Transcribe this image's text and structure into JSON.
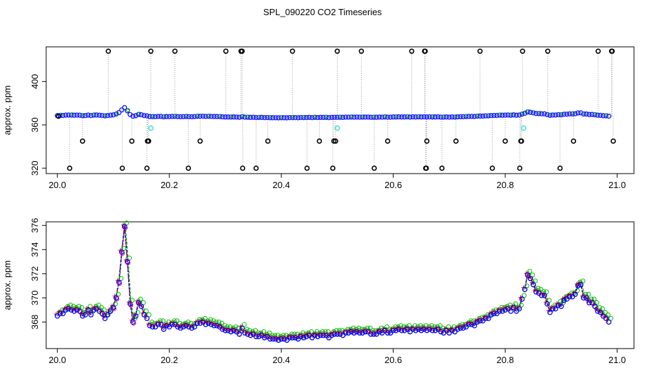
{
  "chart_data": [
    {
      "type": "scatter",
      "title": "SPL_090220  CO2 Timeseries",
      "xlabel": "",
      "ylabel": "approx. ppm",
      "xlim": [
        19.98,
        21.03
      ],
      "ylim": [
        315,
        432
      ],
      "xticks": [
        20.0,
        20.2,
        20.4,
        20.6,
        20.8,
        21.0
      ],
      "xtick_labels": [
        "20.0",
        "20.2",
        "20.4",
        "20.6",
        "20.8",
        "21.0"
      ],
      "yticks": [
        320,
        360,
        400
      ],
      "ytick_labels": [
        "320",
        "360",
        "400"
      ],
      "legend": "none",
      "series": [
        {
          "name": "raw",
          "color": "#000000",
          "x": [
            20.002,
            20.022,
            20.045,
            20.091,
            20.116,
            20.133,
            20.16,
            20.161,
            20.163,
            20.167,
            20.21,
            20.234,
            20.255,
            20.301,
            20.328,
            20.33,
            20.331,
            20.355,
            20.376,
            20.42,
            20.446,
            20.468,
            20.492,
            20.494,
            20.497,
            20.5,
            20.543,
            20.566,
            20.59,
            20.633,
            20.656,
            20.657,
            20.658,
            20.659,
            20.66,
            20.687,
            20.712,
            20.755,
            20.777,
            20.8,
            20.826,
            20.828,
            20.829,
            20.831,
            20.876,
            20.898,
            20.922,
            20.966,
            20.99,
            20.991,
            20.993
          ],
          "y": [
            368,
            320,
            345,
            428,
            320,
            345,
            320,
            345,
            345,
            428,
            428,
            320,
            345,
            428,
            428,
            428,
            320,
            320,
            345,
            428,
            320,
            345,
            320,
            345,
            345,
            428,
            428,
            320,
            345,
            428,
            428,
            428,
            320,
            320,
            345,
            320,
            345,
            428,
            320,
            345,
            320,
            345,
            345,
            428,
            428,
            320,
            345,
            428,
            428,
            428,
            345
          ]
        },
        {
          "name": "flagged",
          "color": "#33dddd",
          "x": [
            20.167,
            20.5,
            20.833
          ],
          "y": [
            357,
            357,
            357
          ]
        },
        {
          "name": "co2",
          "color": "#1a1aff",
          "segments": [
            {
              "x": [
                20.0,
                20.005,
                20.01,
                20.015,
                20.02,
                20.025,
                20.03,
                20.035,
                20.04,
                20.045,
                20.05,
                20.055,
                20.06,
                20.065,
                20.07,
                20.075,
                20.08,
                20.085,
                20.09,
                20.095,
                20.1,
                20.105,
                20.11,
                20.115,
                20.12,
                20.125,
                20.13,
                20.135,
                20.14,
                20.145,
                20.15,
                20.155,
                20.16
              ],
              "y": [
                368.5,
                368.7,
                368.7,
                369.0,
                369.1,
                369.0,
                368.9,
                369.0,
                368.9,
                368.5,
                368.6,
                369.0,
                368.6,
                369.0,
                369.1,
                368.9,
                368.7,
                368.3,
                368.6,
                368.9,
                369.2,
                370.0,
                371.3,
                373.8,
                375.9,
                373.0,
                369.5,
                368.0,
                368.5,
                369.6,
                369.3,
                368.6,
                368.3
              ]
            },
            {
              "x": [
                20.165,
                20.17,
                20.175,
                20.18,
                20.185,
                20.19,
                20.195,
                20.2,
                20.205,
                20.21,
                20.215,
                20.22,
                20.225,
                20.23,
                20.235,
                20.24,
                20.245,
                20.25,
                20.255,
                20.26,
                20.265,
                20.27,
                20.275,
                20.28,
                20.285,
                20.29,
                20.295,
                20.3,
                20.305,
                20.31,
                20.315,
                20.32,
                20.325,
                20.33
              ],
              "y": [
                367.7,
                367.6,
                367.6,
                367.8,
                367.8,
                367.4,
                367.7,
                367.6,
                367.8,
                367.8,
                367.6,
                367.5,
                367.6,
                367.7,
                367.6,
                367.5,
                367.6,
                367.9,
                367.9,
                368.0,
                367.8,
                367.9,
                367.8,
                367.7,
                367.7,
                367.6,
                367.4,
                367.3,
                367.3,
                367.2,
                367.3,
                367.2,
                367.0,
                367.5
              ]
            },
            {
              "x": [
                20.335,
                20.34,
                20.345,
                20.35,
                20.355,
                20.36,
                20.365,
                20.37,
                20.375,
                20.38,
                20.385,
                20.39,
                20.395,
                20.4,
                20.405,
                20.41,
                20.415,
                20.42,
                20.425,
                20.43,
                20.435,
                20.44,
                20.445,
                20.45,
                20.455,
                20.46,
                20.465,
                20.47,
                20.475,
                20.48,
                20.485,
                20.49,
                20.495
              ],
              "y": [
                367.1,
                367.0,
                366.9,
                367.0,
                366.8,
                366.8,
                366.9,
                366.7,
                366.8,
                366.6,
                366.6,
                366.6,
                366.5,
                366.6,
                366.6,
                366.5,
                366.7,
                366.7,
                366.7,
                366.6,
                366.8,
                366.7,
                366.8,
                366.9,
                366.7,
                366.9,
                366.8,
                366.9,
                366.9,
                366.9,
                366.7,
                366.9,
                367.0
              ]
            },
            {
              "x": [
                20.5,
                20.505,
                20.51,
                20.515,
                20.52,
                20.525,
                20.53,
                20.535,
                20.54,
                20.545,
                20.55,
                20.555,
                20.56,
                20.565,
                20.57,
                20.575,
                20.58,
                20.585,
                20.59,
                20.595,
                20.6,
                20.605,
                20.61,
                20.615,
                20.62,
                20.625,
                20.63,
                20.635,
                20.64,
                20.645,
                20.65,
                20.655,
                20.66
              ],
              "y": [
                367.0,
                367.0,
                366.9,
                367.1,
                367.1,
                367.2,
                367.1,
                367.2,
                367.1,
                367.1,
                367.2,
                367.2,
                367.0,
                367.0,
                367.0,
                367.2,
                367.1,
                367.3,
                367.1,
                367.1,
                367.3,
                367.3,
                367.4,
                367.3,
                367.3,
                367.4,
                367.2,
                367.4,
                367.3,
                367.4,
                367.3,
                367.4,
                367.3
              ]
            },
            {
              "x": [
                20.665,
                20.67,
                20.675,
                20.68,
                20.685,
                20.69,
                20.695,
                20.7,
                20.705,
                20.71,
                20.715,
                20.72,
                20.725,
                20.73,
                20.735,
                20.74,
                20.745,
                20.75,
                20.755,
                20.76,
                20.765,
                20.77,
                20.775,
                20.78,
                20.785,
                20.79,
                20.795,
                20.8,
                20.805,
                20.81,
                20.815,
                20.82,
                20.825,
                20.83
              ],
              "y": [
                367.4,
                367.3,
                367.3,
                367.4,
                367.2,
                367.1,
                367.3,
                367.1,
                367.3,
                367.2,
                367.4,
                367.5,
                367.5,
                367.6,
                367.8,
                367.8,
                367.7,
                368.0,
                368.1,
                368.1,
                368.3,
                368.3,
                368.6,
                368.7,
                368.7,
                368.9,
                368.9,
                369.0,
                369.1,
                368.9,
                369.2,
                368.9,
                369.1,
                369.9
              ]
            },
            {
              "x": [
                20.835,
                20.84,
                20.845,
                20.85,
                20.855,
                20.86,
                20.865,
                20.87,
                20.875,
                20.88,
                20.885,
                20.89,
                20.895,
                20.9,
                20.905,
                20.91,
                20.915,
                20.92,
                20.925,
                20.93,
                20.935,
                20.94,
                20.945,
                20.95,
                20.955,
                20.96,
                20.965,
                20.97,
                20.975,
                20.98,
                20.985
              ],
              "y": [
                370.7,
                371.9,
                371.6,
                371.1,
                370.5,
                370.4,
                370.2,
                370.2,
                369.5,
                368.8,
                369.1,
                369.1,
                369.4,
                369.3,
                369.8,
                369.9,
                370.1,
                370.1,
                370.3,
                371.0,
                371.1,
                370.0,
                370.0,
                369.6,
                369.6,
                369.3,
                368.9,
                368.8,
                368.5,
                368.3,
                368.0
              ]
            }
          ]
        }
      ]
    },
    {
      "type": "line",
      "title": "",
      "xlabel": "",
      "ylabel": "approx. ppm",
      "xlim": [
        19.98,
        21.03
      ],
      "ylim": [
        365.8,
        376.3
      ],
      "xticks": [
        20.0,
        20.2,
        20.4,
        20.6,
        20.8,
        21.0
      ],
      "xtick_labels": [
        "20.0",
        "20.2",
        "20.4",
        "20.6",
        "20.8",
        "21.0"
      ],
      "yticks": [
        368,
        370,
        372,
        374,
        376
      ],
      "ytick_labels": [
        "368",
        "370",
        "372",
        "374",
        "376"
      ],
      "legend": "none",
      "series": [
        {
          "name": "co2 (blue circles)",
          "color": "#0000ee",
          "marker": "circle",
          "ref_series": "co2"
        },
        {
          "name": "smoothed (red)",
          "color": "#dd0000",
          "marker": "plus",
          "ref_series": "co2",
          "offset": 0.15
        },
        {
          "name": "smoothed (green)",
          "color": "#00bb00",
          "marker": "circle",
          "ref_series": "co2",
          "offset": 0.3
        },
        {
          "name": "smoothed (magenta)",
          "color": "#cc00cc",
          "marker": "circle",
          "ref_series": "co2",
          "offset": -0.1,
          "x_range": [
            20.1,
            20.135
          ]
        }
      ]
    }
  ]
}
